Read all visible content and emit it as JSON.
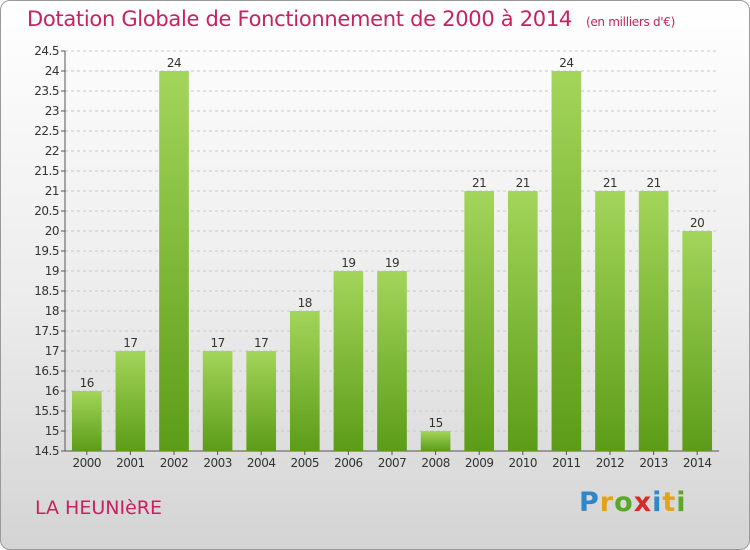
{
  "title": "Dotation Globale de Fonctionnement de 2000 à 2014",
  "unit": "(en milliers d'€)",
  "commune": "LA HEUNIèRE",
  "logo": {
    "letters": [
      {
        "ch": "P",
        "color": "#2f86c8"
      },
      {
        "ch": "r",
        "color": "#e2a21a"
      },
      {
        "ch": "o",
        "color": "#5aa82a"
      },
      {
        "ch": "x",
        "color": "#d92a2a"
      },
      {
        "ch": "i",
        "color": "#2f86c8"
      },
      {
        "ch": "t",
        "color": "#e2a21a"
      },
      {
        "ch": "i",
        "color": "#5aa82a"
      }
    ]
  },
  "colors": {
    "title": "#c8215f",
    "bar_top": "#a3d55a",
    "bar_bottom": "#5c9c18",
    "grid": "#c8c8c8"
  },
  "chart_data": {
    "type": "bar",
    "title": "Dotation Globale de Fonctionnement de 2000 à 2014",
    "categories": [
      "2000",
      "2001",
      "2002",
      "2003",
      "2004",
      "2005",
      "2006",
      "2007",
      "2008",
      "2009",
      "2010",
      "2011",
      "2012",
      "2013",
      "2014"
    ],
    "values": [
      16,
      17,
      24,
      17,
      17,
      18,
      19,
      19,
      15,
      21,
      21,
      24,
      21,
      21,
      20
    ],
    "data_labels": [
      "16",
      "17",
      "24",
      "17",
      "17",
      "18",
      "19",
      "19",
      "15",
      "21",
      "21",
      "24",
      "21",
      "21",
      "20"
    ],
    "yticks": [
      "14.5",
      "15",
      "15.5",
      "16",
      "16.5",
      "17",
      "17.5",
      "18",
      "18.5",
      "19",
      "19.5",
      "20",
      "20.5",
      "21",
      "21.5",
      "22",
      "22.5",
      "23",
      "23.5",
      "24",
      "24.5"
    ],
    "ylim": [
      14.5,
      24.5
    ],
    "xlabel": "",
    "ylabel": "",
    "grid": true,
    "legend": "none"
  }
}
